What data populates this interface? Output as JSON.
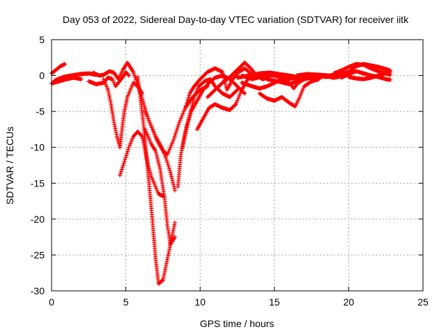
{
  "chart_data": {
    "type": "scatter",
    "title": "Day 053 of 2022, Sidereal Day-to-day VTEC variation (SDTVAR) for receiver iitk",
    "xlabel": "GPS time / hours",
    "ylabel": "SDTVAR / TECUs",
    "xlim": [
      0,
      25
    ],
    "ylim": [
      -30,
      5
    ],
    "xticks": [
      0,
      5,
      10,
      15,
      20,
      25
    ],
    "yticks": [
      -30,
      -25,
      -20,
      -15,
      -10,
      -5,
      0,
      5
    ],
    "grid": true,
    "legend": "none",
    "marker": "plus",
    "color": "#ff0000",
    "series": [
      {
        "points": [
          [
            0,
            0.3
          ],
          [
            0.3,
            0.8
          ],
          [
            0.6,
            1.3
          ],
          [
            0.9,
            1.6
          ]
        ]
      },
      {
        "points": [
          [
            0,
            -1.1
          ],
          [
            0.5,
            -0.8
          ],
          [
            1.0,
            -0.5
          ],
          [
            1.5,
            -0.3
          ],
          [
            2.0,
            -0.5
          ]
        ]
      },
      {
        "points": [
          [
            0.2,
            -0.7
          ],
          [
            0.8,
            -0.2
          ],
          [
            1.3,
            0.0
          ],
          [
            1.9,
            0.2
          ],
          [
            2.5,
            0.3
          ],
          [
            3.0,
            0.1
          ]
        ]
      },
      {
        "points": [
          [
            2.5,
            -0.8
          ],
          [
            3.0,
            -1.2
          ],
          [
            3.5,
            -1.0
          ],
          [
            3.8,
            -0.3
          ],
          [
            4.1,
            -0.5
          ],
          [
            4.3,
            -1.5
          ],
          [
            4.5,
            -1.0
          ],
          [
            4.8,
            -0.2
          ],
          [
            5.0,
            0.5
          ],
          [
            5.2,
            0.0
          ]
        ]
      },
      {
        "points": [
          [
            2.8,
            0.4
          ],
          [
            3.2,
            0.0
          ],
          [
            3.5,
            0.1
          ],
          [
            3.9,
            0.6
          ],
          [
            4.2,
            0.4
          ],
          [
            4.5,
            -0.5
          ],
          [
            4.8,
            0.8
          ],
          [
            5.1,
            1.8
          ],
          [
            5.5,
            0.5
          ],
          [
            6.0,
            -2.5
          ],
          [
            6.5,
            -6.0
          ],
          [
            7.0,
            -8.5
          ],
          [
            7.4,
            -10.0
          ],
          [
            7.7,
            -11.5
          ],
          [
            8.0,
            -13.5
          ],
          [
            8.3,
            -16.0
          ]
        ]
      },
      {
        "points": [
          [
            3.5,
            -0.5
          ],
          [
            3.8,
            -2.0
          ],
          [
            4.0,
            -4.0
          ],
          [
            4.2,
            -6.5
          ],
          [
            4.4,
            -8.5
          ],
          [
            4.6,
            -10.0
          ],
          [
            4.8,
            -6.5
          ],
          [
            4.9,
            -5.0
          ],
          [
            5.0,
            -4.0
          ],
          [
            5.1,
            -3.0
          ],
          [
            5.3,
            -2.0
          ],
          [
            5.5,
            -1.0
          ],
          [
            5.8,
            -1.5
          ],
          [
            6.1,
            -2.5
          ]
        ]
      },
      {
        "points": [
          [
            4.6,
            -13.9
          ],
          [
            4.9,
            -12.0
          ],
          [
            5.2,
            -10.0
          ],
          [
            5.5,
            -8.5
          ],
          [
            5.8,
            -7.8
          ],
          [
            6.1,
            -8.5
          ],
          [
            6.3,
            -10.5
          ],
          [
            6.5,
            -12.5
          ],
          [
            6.7,
            -14.0
          ],
          [
            7.0,
            -15.5
          ],
          [
            7.2,
            -16.5
          ],
          [
            7.5,
            -16.8
          ]
        ]
      },
      {
        "points": [
          [
            5.8,
            -0.2
          ],
          [
            6.0,
            -3.5
          ],
          [
            6.2,
            -7.0
          ],
          [
            6.4,
            -11.5
          ],
          [
            6.6,
            -16.0
          ],
          [
            6.8,
            -20.5
          ],
          [
            7.0,
            -25.5
          ],
          [
            7.2,
            -29.0
          ],
          [
            7.5,
            -28.5
          ],
          [
            7.7,
            -26.5
          ],
          [
            7.9,
            -24.5
          ],
          [
            8.1,
            -22.5
          ],
          [
            8.3,
            -20.5
          ]
        ]
      },
      {
        "points": [
          [
            6.3,
            -7.5
          ],
          [
            6.7,
            -9.5
          ],
          [
            7.0,
            -10.5
          ],
          [
            7.3,
            -13.0
          ],
          [
            7.6,
            -17.0
          ],
          [
            7.8,
            -21.0
          ],
          [
            8.0,
            -23.5
          ],
          [
            8.3,
            -22.5
          ]
        ]
      },
      {
        "points": [
          [
            6.3,
            -5.0
          ],
          [
            6.7,
            -7.0
          ],
          [
            7.1,
            -9.0
          ],
          [
            7.5,
            -10.5
          ],
          [
            7.8,
            -11.0
          ],
          [
            8.2,
            -9.0
          ],
          [
            8.6,
            -6.5
          ],
          [
            9.0,
            -4.5
          ],
          [
            9.5,
            -3.0
          ],
          [
            10.0,
            -2.0
          ],
          [
            10.5,
            -1.5
          ]
        ]
      },
      {
        "points": [
          [
            8.5,
            -15.5
          ],
          [
            8.7,
            -11.0
          ],
          [
            9.0,
            -8.0
          ],
          [
            9.3,
            -5.5
          ],
          [
            9.6,
            -3.0
          ],
          [
            9.9,
            -1.5
          ],
          [
            10.3,
            -0.8
          ],
          [
            10.7,
            -0.5
          ],
          [
            11.0,
            -1.5
          ],
          [
            11.5,
            -2.5
          ],
          [
            12.0,
            -3.0
          ],
          [
            12.5,
            -2.0
          ]
        ]
      },
      {
        "points": [
          [
            8.8,
            -10.0
          ],
          [
            9.1,
            -7.0
          ],
          [
            9.4,
            -5.0
          ],
          [
            9.8,
            -3.5
          ],
          [
            10.2,
            -2.0
          ],
          [
            10.6,
            -1.0
          ],
          [
            11.0,
            -0.3
          ],
          [
            11.5,
            0.0
          ],
          [
            12.0,
            -0.5
          ],
          [
            12.5,
            -1.5
          ],
          [
            13.0,
            -2.5
          ]
        ]
      },
      {
        "points": [
          [
            9.0,
            -4.5
          ],
          [
            9.3,
            -2.5
          ],
          [
            9.6,
            -1.5
          ],
          [
            10.0,
            -0.5
          ],
          [
            10.5,
            0.5
          ],
          [
            11.0,
            1.0
          ],
          [
            11.5,
            0.5
          ],
          [
            11.8,
            -2.0
          ],
          [
            12.2,
            -0.5
          ],
          [
            12.6,
            0.5
          ],
          [
            13.0,
            1.0
          ],
          [
            13.4,
            0.3
          ]
        ]
      },
      {
        "points": [
          [
            9.8,
            -7.5
          ],
          [
            10.2,
            -6.0
          ],
          [
            10.6,
            -4.5
          ],
          [
            11.0,
            -4.0
          ],
          [
            11.5,
            -4.5
          ],
          [
            12.0,
            -4.8
          ],
          [
            12.4,
            -4.0
          ],
          [
            12.8,
            -2.0
          ],
          [
            13.2,
            -0.5
          ],
          [
            13.6,
            0.0
          ],
          [
            14.0,
            -0.3
          ]
        ]
      },
      {
        "points": [
          [
            10.5,
            -3.0
          ],
          [
            11.0,
            -2.0
          ],
          [
            11.5,
            -1.0
          ],
          [
            12.0,
            -0.2
          ],
          [
            12.5,
            0.8
          ],
          [
            13.0,
            1.8
          ],
          [
            13.4,
            1.0
          ],
          [
            13.8,
            0.0
          ],
          [
            14.2,
            -0.5
          ],
          [
            14.6,
            -0.3
          ]
        ]
      },
      {
        "points": [
          [
            12.8,
            0.0
          ],
          [
            13.5,
            -0.5
          ],
          [
            14.0,
            -0.2
          ],
          [
            14.5,
            0.1
          ],
          [
            15.0,
            0.0
          ],
          [
            15.5,
            -0.3
          ],
          [
            16.0,
            -0.5
          ],
          [
            16.5,
            -0.2
          ],
          [
            17.0,
            0.0
          ]
        ]
      },
      {
        "points": [
          [
            12.5,
            -0.3
          ],
          [
            13.3,
            0.0
          ],
          [
            14.0,
            0.3
          ],
          [
            14.7,
            0.4
          ],
          [
            15.3,
            0.2
          ],
          [
            16.0,
            0.0
          ],
          [
            16.5,
            -0.2
          ]
        ]
      },
      {
        "points": [
          [
            12.8,
            -1.0
          ],
          [
            13.5,
            -1.5
          ],
          [
            14.0,
            -1.8
          ],
          [
            14.5,
            -1.5
          ],
          [
            15.0,
            -1.0
          ],
          [
            15.5,
            -0.5
          ],
          [
            16.0,
            -1.0
          ],
          [
            16.3,
            -1.8
          ],
          [
            16.6,
            -1.0
          ],
          [
            17.0,
            -0.5
          ]
        ]
      },
      {
        "points": [
          [
            14.0,
            -2.5
          ],
          [
            14.5,
            -3.2
          ],
          [
            15.0,
            -3.5
          ],
          [
            15.5,
            -3.0
          ],
          [
            16.0,
            -3.8
          ],
          [
            16.4,
            -4.3
          ],
          [
            16.7,
            -3.0
          ],
          [
            17.0,
            -1.5
          ],
          [
            17.5,
            -0.8
          ],
          [
            18.0,
            -0.5
          ]
        ]
      },
      {
        "points": [
          [
            14.5,
            -0.5
          ],
          [
            15.2,
            -0.8
          ],
          [
            16.0,
            -1.2
          ],
          [
            16.5,
            -0.8
          ],
          [
            17.0,
            -0.3
          ],
          [
            17.5,
            0.0
          ],
          [
            18.0,
            0.0
          ],
          [
            18.5,
            -0.2
          ],
          [
            19.0,
            0.0
          ],
          [
            19.5,
            0.2
          ]
        ]
      },
      {
        "points": [
          [
            15.5,
            -0.5
          ],
          [
            16.3,
            -0.3
          ],
          [
            17.0,
            -0.5
          ],
          [
            17.5,
            -0.3
          ],
          [
            18.0,
            -0.2
          ],
          [
            18.5,
            -0.1
          ],
          [
            19.0,
            -0.3
          ],
          [
            19.5,
            -0.1
          ]
        ]
      },
      {
        "points": [
          [
            16.5,
            0.0
          ],
          [
            17.2,
            0.2
          ],
          [
            18.0,
            0.1
          ],
          [
            18.7,
            0.0
          ],
          [
            19.5,
            0.2
          ],
          [
            20.0,
            0.5
          ],
          [
            20.5,
            1.3
          ],
          [
            21.0,
            1.6
          ],
          [
            21.5,
            1.4
          ],
          [
            22.0,
            1.2
          ],
          [
            22.5,
            0.9
          ],
          [
            22.8,
            0.7
          ]
        ]
      },
      {
        "points": [
          [
            19.0,
            0.3
          ],
          [
            19.5,
            0.7
          ],
          [
            20.0,
            1.2
          ],
          [
            20.5,
            1.6
          ],
          [
            21.0,
            1.5
          ],
          [
            21.5,
            1.0
          ],
          [
            22.0,
            0.6
          ],
          [
            22.5,
            0.3
          ],
          [
            22.8,
            0.5
          ]
        ]
      },
      {
        "points": [
          [
            19.5,
            -0.3
          ],
          [
            20.0,
            0.2
          ],
          [
            20.5,
            0.6
          ],
          [
            21.0,
            0.3
          ],
          [
            21.5,
            0.0
          ],
          [
            22.0,
            -0.2
          ],
          [
            22.5,
            -0.5
          ],
          [
            22.8,
            -0.6
          ]
        ]
      },
      {
        "points": [
          [
            20.0,
            -0.2
          ],
          [
            20.5,
            -0.4
          ],
          [
            21.0,
            -0.5
          ],
          [
            21.5,
            -0.3
          ],
          [
            22.0,
            0.0
          ],
          [
            22.5,
            0.3
          ],
          [
            22.8,
            0.1
          ]
        ]
      }
    ]
  }
}
